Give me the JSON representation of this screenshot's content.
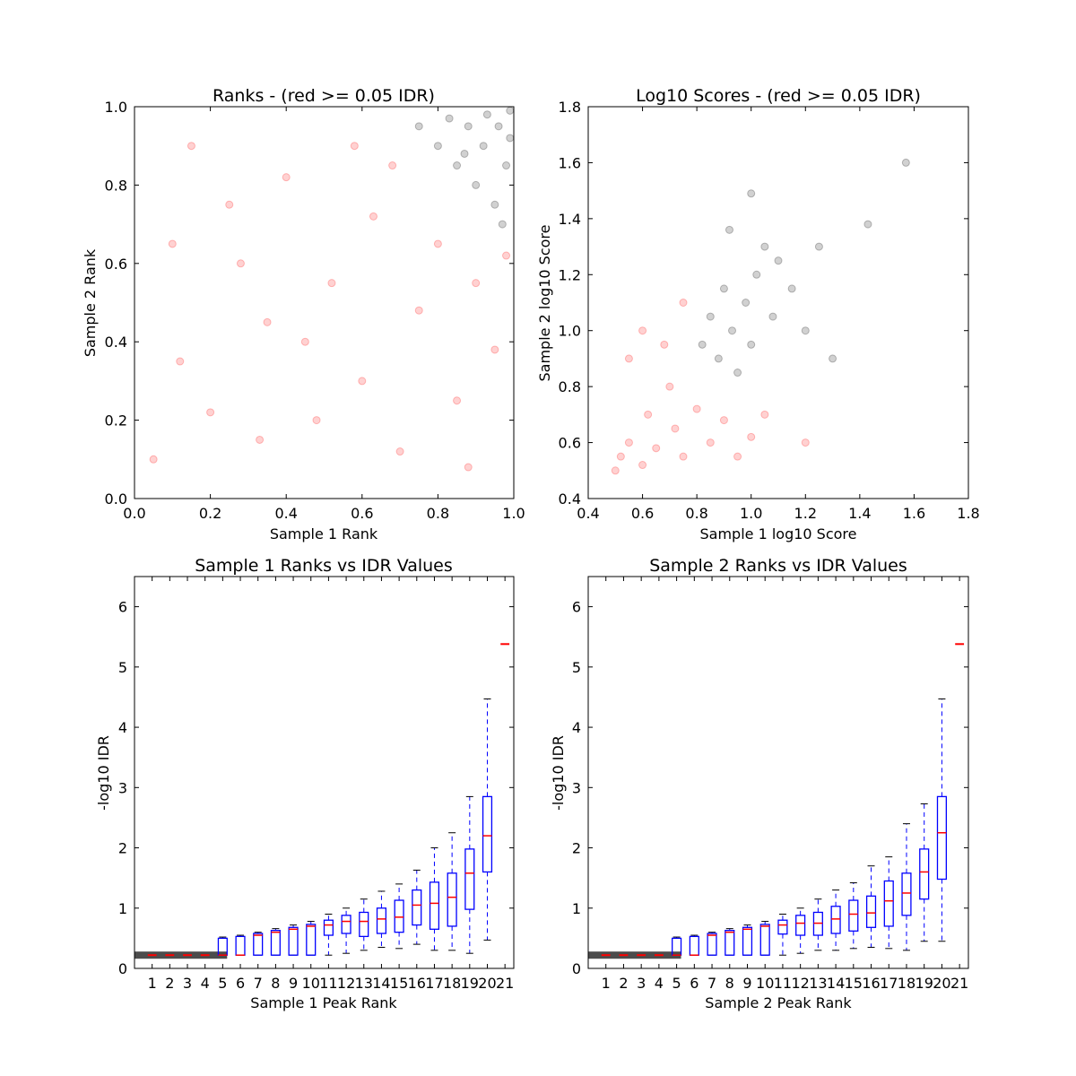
{
  "chart_data": [
    {
      "type": "scatter",
      "title": "Ranks - (red >= 0.05 IDR)",
      "xlabel": "Sample 1 Rank",
      "ylabel": "Sample 2 Rank",
      "xlim": [
        0.0,
        1.0
      ],
      "ylim": [
        0.0,
        1.0
      ],
      "xticks": [
        "0.0",
        "0.2",
        "0.4",
        "0.6",
        "0.8",
        "1.0"
      ],
      "yticks": [
        "0.0",
        "0.2",
        "0.4",
        "0.6",
        "0.8",
        "1.0"
      ],
      "colors": {
        "high_idr": "#ff0000",
        "low_idr": "#000000"
      },
      "series": [
        {
          "points": [
            [
              0.05,
              0.1
            ],
            [
              0.12,
              0.35
            ],
            [
              0.2,
              0.22
            ],
            [
              0.28,
              0.6
            ],
            [
              0.33,
              0.15
            ],
            [
              0.4,
              0.82
            ],
            [
              0.45,
              0.4
            ],
            [
              0.52,
              0.55
            ],
            [
              0.6,
              0.3
            ],
            [
              0.63,
              0.72
            ],
            [
              0.7,
              0.12
            ],
            [
              0.75,
              0.48
            ],
            [
              0.8,
              0.65
            ],
            [
              0.85,
              0.25
            ],
            [
              0.9,
              0.55
            ],
            [
              0.95,
              0.38
            ],
            [
              0.15,
              0.9
            ],
            [
              0.25,
              0.75
            ],
            [
              0.58,
              0.9
            ],
            [
              0.68,
              0.85
            ],
            [
              0.1,
              0.65
            ],
            [
              0.35,
              0.45
            ],
            [
              0.48,
              0.2
            ],
            [
              0.88,
              0.08
            ],
            [
              0.98,
              0.62
            ]
          ]
        },
        {
          "points": [
            [
              0.75,
              0.95
            ],
            [
              0.8,
              0.9
            ],
            [
              0.85,
              0.85
            ],
            [
              0.88,
              0.95
            ],
            [
              0.9,
              0.8
            ],
            [
              0.92,
              0.9
            ],
            [
              0.95,
              0.75
            ],
            [
              0.96,
              0.95
            ],
            [
              0.98,
              0.85
            ],
            [
              0.99,
              0.99
            ],
            [
              0.97,
              0.7
            ],
            [
              0.83,
              0.97
            ],
            [
              0.93,
              0.98
            ],
            [
              0.87,
              0.88
            ],
            [
              0.99,
              0.92
            ]
          ]
        }
      ]
    },
    {
      "type": "scatter",
      "title": "Log10 Scores - (red >= 0.05 IDR)",
      "xlabel": "Sample 1 log10 Score",
      "ylabel": "Sample 2 log10 Score",
      "xlim": [
        0.4,
        1.8
      ],
      "ylim": [
        0.4,
        1.8
      ],
      "xticks": [
        "0.4",
        "0.6",
        "0.8",
        "1.0",
        "1.2",
        "1.4",
        "1.6",
        "1.8"
      ],
      "yticks": [
        "0.4",
        "0.6",
        "0.8",
        "1.0",
        "1.2",
        "1.4",
        "1.6",
        "1.8"
      ],
      "colors": {
        "high_idr": "#ff0000",
        "low_idr": "#000000"
      },
      "series": [
        {
          "points": [
            [
              0.5,
              0.5
            ],
            [
              0.52,
              0.55
            ],
            [
              0.55,
              0.6
            ],
            [
              0.6,
              0.52
            ],
            [
              0.62,
              0.7
            ],
            [
              0.65,
              0.58
            ],
            [
              0.7,
              0.8
            ],
            [
              0.72,
              0.65
            ],
            [
              0.75,
              0.55
            ],
            [
              0.8,
              0.72
            ],
            [
              0.85,
              0.6
            ],
            [
              0.9,
              0.68
            ],
            [
              0.95,
              0.55
            ],
            [
              1.0,
              0.62
            ],
            [
              0.55,
              0.9
            ],
            [
              0.6,
              1.0
            ],
            [
              0.68,
              0.95
            ],
            [
              0.75,
              1.1
            ],
            [
              1.05,
              0.7
            ],
            [
              1.2,
              0.6
            ]
          ]
        },
        {
          "points": [
            [
              0.82,
              0.95
            ],
            [
              0.85,
              1.05
            ],
            [
              0.88,
              0.9
            ],
            [
              0.9,
              1.15
            ],
            [
              0.93,
              1.0
            ],
            [
              0.95,
              0.85
            ],
            [
              0.98,
              1.1
            ],
            [
              1.0,
              0.95
            ],
            [
              1.02,
              1.2
            ],
            [
              1.05,
              1.3
            ],
            [
              1.08,
              1.05
            ],
            [
              1.1,
              1.25
            ],
            [
              1.15,
              1.15
            ],
            [
              1.2,
              1.0
            ],
            [
              1.25,
              1.3
            ],
            [
              1.3,
              0.9
            ],
            [
              1.43,
              1.38
            ],
            [
              1.57,
              1.6
            ],
            [
              1.0,
              1.49
            ],
            [
              0.92,
              1.36
            ]
          ]
        }
      ]
    },
    {
      "type": "box",
      "title": "Sample 1 Ranks vs IDR Values",
      "xlabel": "Sample 1 Peak Rank",
      "ylabel": "-log10 IDR",
      "ylim": [
        0,
        6.5
      ],
      "yticks": [
        "0",
        "1",
        "2",
        "3",
        "4",
        "5",
        "6"
      ],
      "categories": [
        "1",
        "2",
        "3",
        "4",
        "5",
        "6",
        "7",
        "8",
        "9",
        "10",
        "11",
        "12",
        "13",
        "14",
        "15",
        "16",
        "17",
        "18",
        "19",
        "20",
        "21"
      ],
      "colors": {
        "box": "#0000ff",
        "median": "#ff0000",
        "points": "#000000"
      },
      "boxes": [
        {
          "min": 0.22,
          "q1": 0.22,
          "med": 0.22,
          "q3": 0.22,
          "max": 0.22
        },
        {
          "min": 0.22,
          "q1": 0.22,
          "med": 0.22,
          "q3": 0.22,
          "max": 0.22
        },
        {
          "min": 0.22,
          "q1": 0.22,
          "med": 0.22,
          "q3": 0.22,
          "max": 0.22
        },
        {
          "min": 0.22,
          "q1": 0.22,
          "med": 0.22,
          "q3": 0.22,
          "max": 0.22
        },
        {
          "min": 0.22,
          "q1": 0.22,
          "med": 0.22,
          "q3": 0.5,
          "max": 0.52
        },
        {
          "min": 0.22,
          "q1": 0.22,
          "med": 0.22,
          "q3": 0.53,
          "max": 0.55
        },
        {
          "min": 0.22,
          "q1": 0.22,
          "med": 0.55,
          "q3": 0.58,
          "max": 0.6
        },
        {
          "min": 0.22,
          "q1": 0.22,
          "med": 0.6,
          "q3": 0.63,
          "max": 0.66
        },
        {
          "min": 0.22,
          "q1": 0.22,
          "med": 0.65,
          "q3": 0.68,
          "max": 0.72
        },
        {
          "min": 0.22,
          "q1": 0.22,
          "med": 0.7,
          "q3": 0.73,
          "max": 0.78
        },
        {
          "min": 0.22,
          "q1": 0.55,
          "med": 0.72,
          "q3": 0.8,
          "max": 0.9
        },
        {
          "min": 0.25,
          "q1": 0.58,
          "med": 0.78,
          "q3": 0.88,
          "max": 1.0
        },
        {
          "min": 0.3,
          "q1": 0.53,
          "med": 0.78,
          "q3": 0.93,
          "max": 1.15
        },
        {
          "min": 0.35,
          "q1": 0.58,
          "med": 0.82,
          "q3": 1.0,
          "max": 1.28
        },
        {
          "min": 0.33,
          "q1": 0.6,
          "med": 0.85,
          "q3": 1.13,
          "max": 1.4
        },
        {
          "min": 0.4,
          "q1": 0.72,
          "med": 1.05,
          "q3": 1.3,
          "max": 1.63
        },
        {
          "min": 0.3,
          "q1": 0.65,
          "med": 1.08,
          "q3": 1.43,
          "max": 2.0
        },
        {
          "min": 0.3,
          "q1": 0.7,
          "med": 1.18,
          "q3": 1.58,
          "max": 2.25
        },
        {
          "min": 0.25,
          "q1": 0.98,
          "med": 1.58,
          "q3": 1.98,
          "max": 2.85
        },
        {
          "min": 0.47,
          "q1": 1.6,
          "med": 2.2,
          "q3": 2.85,
          "max": 4.47
        },
        {
          "min": 5.38,
          "q1": 5.38,
          "med": 5.38,
          "q3": 5.38,
          "max": 5.38
        }
      ]
    },
    {
      "type": "box",
      "title": "Sample 2 Ranks vs IDR Values",
      "xlabel": "Sample 2 Peak Rank",
      "ylabel": "-log10 IDR",
      "ylim": [
        0,
        6.5
      ],
      "yticks": [
        "0",
        "1",
        "2",
        "3",
        "4",
        "5",
        "6"
      ],
      "categories": [
        "1",
        "2",
        "3",
        "4",
        "5",
        "6",
        "7",
        "8",
        "9",
        "10",
        "11",
        "12",
        "13",
        "14",
        "15",
        "16",
        "17",
        "18",
        "19",
        "20",
        "21"
      ],
      "colors": {
        "box": "#0000ff",
        "median": "#ff0000",
        "points": "#000000"
      },
      "boxes": [
        {
          "min": 0.22,
          "q1": 0.22,
          "med": 0.22,
          "q3": 0.22,
          "max": 0.22
        },
        {
          "min": 0.22,
          "q1": 0.22,
          "med": 0.22,
          "q3": 0.22,
          "max": 0.22
        },
        {
          "min": 0.22,
          "q1": 0.22,
          "med": 0.22,
          "q3": 0.22,
          "max": 0.22
        },
        {
          "min": 0.22,
          "q1": 0.22,
          "med": 0.22,
          "q3": 0.22,
          "max": 0.22
        },
        {
          "min": 0.22,
          "q1": 0.22,
          "med": 0.22,
          "q3": 0.5,
          "max": 0.52
        },
        {
          "min": 0.22,
          "q1": 0.22,
          "med": 0.22,
          "q3": 0.53,
          "max": 0.55
        },
        {
          "min": 0.22,
          "q1": 0.22,
          "med": 0.55,
          "q3": 0.58,
          "max": 0.6
        },
        {
          "min": 0.22,
          "q1": 0.22,
          "med": 0.6,
          "q3": 0.63,
          "max": 0.66
        },
        {
          "min": 0.22,
          "q1": 0.22,
          "med": 0.65,
          "q3": 0.68,
          "max": 0.72
        },
        {
          "min": 0.22,
          "q1": 0.22,
          "med": 0.7,
          "q3": 0.73,
          "max": 0.78
        },
        {
          "min": 0.22,
          "q1": 0.57,
          "med": 0.72,
          "q3": 0.8,
          "max": 0.9
        },
        {
          "min": 0.25,
          "q1": 0.55,
          "med": 0.75,
          "q3": 0.88,
          "max": 1.0
        },
        {
          "min": 0.3,
          "q1": 0.55,
          "med": 0.75,
          "q3": 0.93,
          "max": 1.15
        },
        {
          "min": 0.3,
          "q1": 0.58,
          "med": 0.82,
          "q3": 1.03,
          "max": 1.3
        },
        {
          "min": 0.33,
          "q1": 0.62,
          "med": 0.9,
          "q3": 1.13,
          "max": 1.42
        },
        {
          "min": 0.35,
          "q1": 0.68,
          "med": 0.92,
          "q3": 1.2,
          "max": 1.7
        },
        {
          "min": 0.33,
          "q1": 0.7,
          "med": 1.12,
          "q3": 1.45,
          "max": 1.85
        },
        {
          "min": 0.3,
          "q1": 0.88,
          "med": 1.25,
          "q3": 1.58,
          "max": 2.4
        },
        {
          "min": 0.45,
          "q1": 1.15,
          "med": 1.6,
          "q3": 1.98,
          "max": 2.73
        },
        {
          "min": 0.45,
          "q1": 1.48,
          "med": 2.25,
          "q3": 2.85,
          "max": 4.47
        },
        {
          "min": 5.38,
          "q1": 5.38,
          "med": 5.38,
          "q3": 5.38,
          "max": 5.38
        }
      ]
    }
  ]
}
